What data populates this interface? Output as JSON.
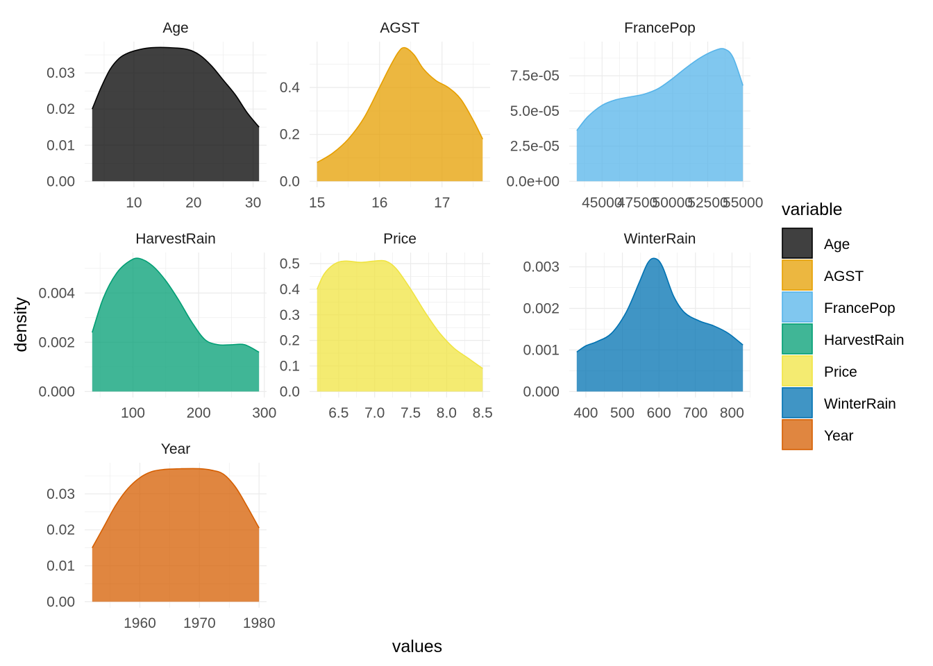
{
  "chart_data": {
    "type": "area",
    "xlabel": "values",
    "ylabel": "density",
    "legend": {
      "title": "variable",
      "placement": "right"
    },
    "panels": [
      {
        "name": "Age",
        "color": "#000000",
        "xlim": [
          3,
          31
        ],
        "ylim": [
          0,
          0.037
        ],
        "xticks": [
          10,
          20,
          30
        ],
        "xtick_labels": [
          "10",
          "20",
          "30"
        ],
        "yticks": [
          0,
          0.01,
          0.02,
          0.03
        ],
        "ytick_labels": [
          "0.00",
          "0.01",
          "0.02",
          "0.03"
        ],
        "x": [
          3,
          4.5,
          6,
          7.5,
          9,
          11,
          13,
          16,
          19,
          21,
          23,
          25,
          27,
          29,
          31
        ],
        "y": [
          0.02,
          0.026,
          0.031,
          0.034,
          0.0355,
          0.0365,
          0.037,
          0.037,
          0.0365,
          0.035,
          0.032,
          0.028,
          0.024,
          0.019,
          0.015
        ]
      },
      {
        "name": "AGST",
        "color": "#E69F00",
        "xlim": [
          15,
          17.65
        ],
        "ylim": [
          0,
          0.57
        ],
        "xticks": [
          15,
          16,
          17
        ],
        "xtick_labels": [
          "15",
          "16",
          "17"
        ],
        "yticks": [
          0,
          0.2,
          0.4
        ],
        "ytick_labels": [
          "0.0",
          "0.2",
          "0.4"
        ],
        "x": [
          15,
          15.25,
          15.5,
          15.75,
          16,
          16.15,
          16.3,
          16.4,
          16.55,
          16.7,
          16.9,
          17.1,
          17.3,
          17.5,
          17.65
        ],
        "y": [
          0.08,
          0.12,
          0.18,
          0.27,
          0.4,
          0.48,
          0.55,
          0.57,
          0.54,
          0.48,
          0.43,
          0.4,
          0.35,
          0.26,
          0.18
        ]
      },
      {
        "name": "FrancePop",
        "color": "#56B4E9",
        "xlim": [
          43200,
          55000
        ],
        "ylim": [
          0,
          9.5e-05
        ],
        "xticks": [
          45000,
          47500,
          50000,
          52500,
          55000
        ],
        "xtick_labels": [
          "45000",
          "47500",
          "50000",
          "52500",
          "55000"
        ],
        "yticks": [
          0,
          2.5e-05,
          5e-05,
          7.5e-05
        ],
        "ytick_labels": [
          "0.0e+00",
          "2.5e-05",
          "5.0e-05",
          "7.5e-05"
        ],
        "x": [
          43200,
          44000,
          45000,
          46000,
          47000,
          48000,
          49000,
          50000,
          51000,
          52000,
          53000,
          53700,
          54300,
          55000
        ],
        "y": [
          3.6e-05,
          4.6e-05,
          5.4e-05,
          5.8e-05,
          6e-05,
          6.2e-05,
          6.6e-05,
          7.3e-05,
          8.1e-05,
          8.8e-05,
          9.3e-05,
          9.4e-05,
          8.8e-05,
          6.8e-05
        ]
      },
      {
        "name": "HarvestRain",
        "color": "#009E73",
        "xlim": [
          38,
          292
        ],
        "ylim": [
          0,
          0.0054
        ],
        "xticks": [
          100,
          200,
          300
        ],
        "xtick_labels": [
          "100",
          "200",
          "300"
        ],
        "yticks": [
          0,
          0.002,
          0.004
        ],
        "ytick_labels": [
          "0.000",
          "0.002",
          "0.004"
        ],
        "x": [
          38,
          55,
          75,
          95,
          110,
          130,
          150,
          170,
          190,
          210,
          230,
          250,
          270,
          292
        ],
        "y": [
          0.0024,
          0.0038,
          0.0048,
          0.0053,
          0.0054,
          0.0051,
          0.0045,
          0.0037,
          0.0028,
          0.0021,
          0.0019,
          0.0019,
          0.0019,
          0.0016
        ]
      },
      {
        "name": "Price",
        "color": "#F0E442",
        "xlim": [
          6.2,
          8.5
        ],
        "ylim": [
          0,
          0.52
        ],
        "xticks": [
          6.5,
          7.0,
          7.5,
          8.0,
          8.5
        ],
        "xtick_labels": [
          "6.5",
          "7.0",
          "7.5",
          "8.0",
          "8.5"
        ],
        "yticks": [
          0,
          0.1,
          0.2,
          0.3,
          0.4,
          0.5
        ],
        "ytick_labels": [
          "0.0",
          "0.1",
          "0.2",
          "0.3",
          "0.4",
          "0.5"
        ],
        "x": [
          6.2,
          6.3,
          6.45,
          6.6,
          6.8,
          7.0,
          7.15,
          7.3,
          7.5,
          7.7,
          7.9,
          8.1,
          8.3,
          8.5
        ],
        "y": [
          0.4,
          0.46,
          0.5,
          0.51,
          0.505,
          0.51,
          0.51,
          0.48,
          0.4,
          0.31,
          0.23,
          0.17,
          0.13,
          0.09
        ]
      },
      {
        "name": "WinterRain",
        "color": "#0072B2",
        "xlim": [
          375,
          830
        ],
        "ylim": [
          0,
          0.0032
        ],
        "xticks": [
          400,
          500,
          600,
          700,
          800
        ],
        "xtick_labels": [
          "400",
          "500",
          "600",
          "700",
          "800"
        ],
        "yticks": [
          0,
          0.001,
          0.002,
          0.003
        ],
        "ytick_labels": [
          "0.000",
          "0.001",
          "0.002",
          "0.003"
        ],
        "x": [
          375,
          400,
          430,
          470,
          510,
          545,
          570,
          590,
          610,
          640,
          670,
          710,
          750,
          790,
          830
        ],
        "y": [
          0.00095,
          0.0011,
          0.0012,
          0.0014,
          0.0019,
          0.0026,
          0.0031,
          0.0032,
          0.003,
          0.0023,
          0.0019,
          0.0017,
          0.00158,
          0.0014,
          0.00112
        ]
      },
      {
        "name": "Year",
        "color": "#D55E00",
        "xlim": [
          1952,
          1980
        ],
        "ylim": [
          0,
          0.037
        ],
        "xticks": [
          1960,
          1970,
          1980
        ],
        "xtick_labels": [
          "1960",
          "1970",
          "1980"
        ],
        "yticks": [
          0,
          0.01,
          0.02,
          0.03
        ],
        "ytick_labels": [
          "0.00",
          "0.01",
          "0.02",
          "0.03"
        ],
        "x": [
          1952,
          1954,
          1956,
          1958,
          1960,
          1962,
          1964,
          1967,
          1970,
          1972,
          1974,
          1976,
          1978,
          1980
        ],
        "y": [
          0.015,
          0.021,
          0.027,
          0.0315,
          0.0345,
          0.0362,
          0.0368,
          0.037,
          0.037,
          0.0366,
          0.0355,
          0.032,
          0.0265,
          0.0205
        ]
      }
    ]
  }
}
